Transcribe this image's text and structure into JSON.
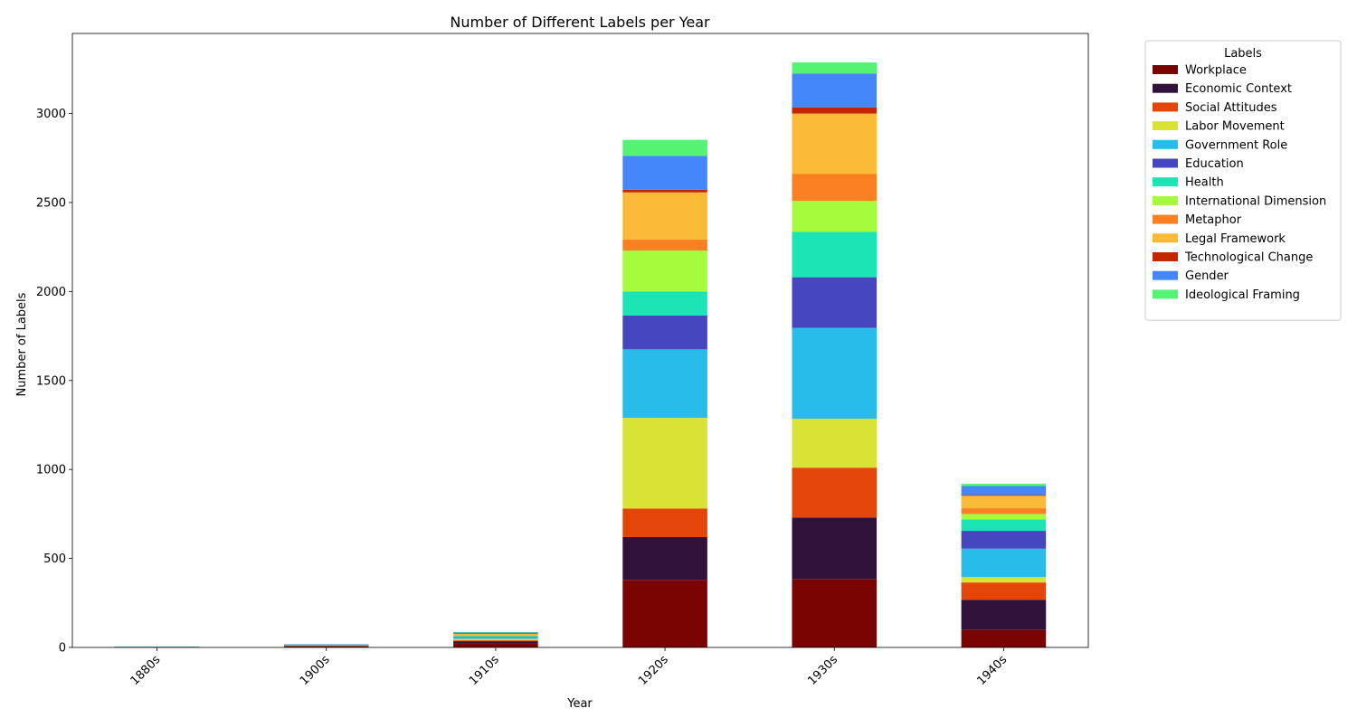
{
  "chart_data": {
    "type": "bar",
    "stacked": true,
    "title": "Number of Different Labels per Year",
    "xlabel": "Year",
    "ylabel": "Number of Labels",
    "ylim": [
      0,
      3450
    ],
    "yticks": [
      0,
      500,
      1000,
      1500,
      2000,
      2500,
      3000
    ],
    "grid": false,
    "legend": {
      "title": "Labels",
      "placement": "outside-top-right"
    },
    "categories": [
      "1880s",
      "1900s",
      "1910s",
      "1920s",
      "1930s",
      "1940s"
    ],
    "series": [
      {
        "name": "Workplace",
        "color": "#7a0403",
        "values": [
          2,
          5,
          25,
          380,
          385,
          100
        ]
      },
      {
        "name": "Economic Context",
        "color": "#30123b",
        "values": [
          1,
          3,
          10,
          240,
          345,
          168
        ]
      },
      {
        "name": "Social Attitudes",
        "color": "#e4460a",
        "values": [
          0,
          2,
          5,
          160,
          280,
          97
        ]
      },
      {
        "name": "Labor Movement",
        "color": "#d8e335",
        "values": [
          0,
          1,
          8,
          510,
          275,
          30
        ]
      },
      {
        "name": "Government Role",
        "color": "#28bceb",
        "values": [
          1,
          2,
          7,
          385,
          510,
          160
        ]
      },
      {
        "name": "Education",
        "color": "#4646bf",
        "values": [
          0,
          1,
          4,
          190,
          285,
          100
        ]
      },
      {
        "name": "Health",
        "color": "#1be5b5",
        "values": [
          0,
          1,
          5,
          135,
          255,
          65
        ]
      },
      {
        "name": "International Dimension",
        "color": "#a4fc3c",
        "values": [
          0,
          1,
          4,
          230,
          175,
          30
        ]
      },
      {
        "name": "Metaphor",
        "color": "#fb8022",
        "values": [
          0,
          0,
          3,
          62,
          150,
          32
        ]
      },
      {
        "name": "Legal Framework",
        "color": "#f9ba38",
        "values": [
          0,
          1,
          6,
          265,
          340,
          70
        ]
      },
      {
        "name": "Technological Change",
        "color": "#c42503",
        "values": [
          0,
          0,
          2,
          15,
          35,
          5
        ]
      },
      {
        "name": "Gender",
        "color": "#4686fb",
        "values": [
          0,
          1,
          5,
          190,
          190,
          50
        ]
      },
      {
        "name": "Ideological Framing",
        "color": "#55f374",
        "values": [
          0,
          0,
          3,
          90,
          62,
          13
        ]
      }
    ]
  }
}
